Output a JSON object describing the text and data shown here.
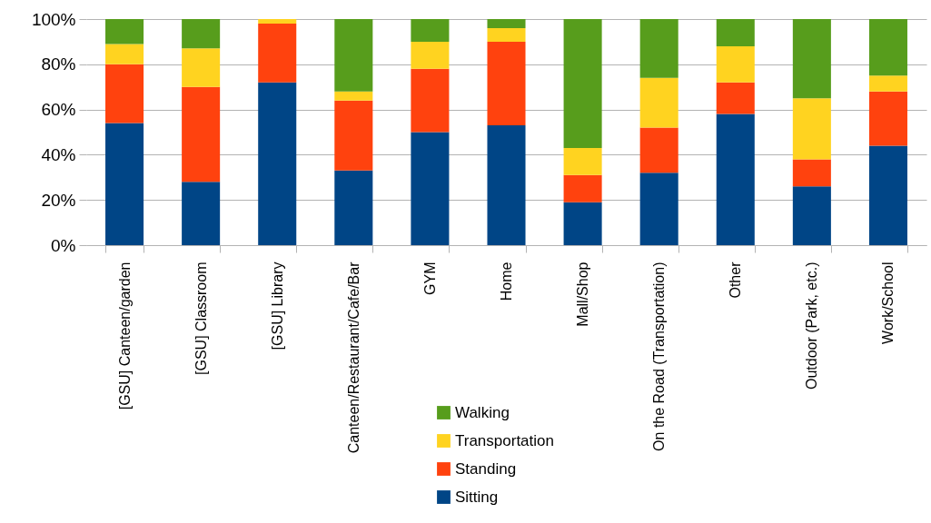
{
  "chart_data": {
    "type": "bar",
    "stacked": true,
    "categories": [
      "[GSU] Canteen/garden",
      "[GSU] Classroom",
      "[GSU] Library",
      "Canteen/Restaurant/Cafe/Bar",
      "GYM",
      "Home",
      "Mall/Shop",
      "On the Road (Transportation)",
      "Other",
      "Outdoor (Park, etc.)",
      "Work/School"
    ],
    "series": [
      {
        "name": "Sitting",
        "color": "#004586",
        "values": [
          54,
          28,
          72,
          33,
          50,
          53,
          19,
          32,
          58,
          26,
          44
        ]
      },
      {
        "name": "Standing",
        "color": "#ff420e",
        "values": [
          26,
          42,
          26,
          31,
          28,
          37,
          12,
          20,
          14,
          12,
          24
        ]
      },
      {
        "name": "Transportation",
        "color": "#ffd320",
        "values": [
          9,
          17,
          2,
          4,
          12,
          6,
          12,
          22,
          16,
          27,
          7
        ]
      },
      {
        "name": "Walking",
        "color": "#579d1c",
        "values": [
          11,
          13,
          0,
          32,
          10,
          4,
          57,
          26,
          12,
          35,
          25
        ]
      }
    ],
    "ylim": [
      0,
      100
    ],
    "yticks": [
      {
        "value": 0,
        "label": "0%"
      },
      {
        "value": 20,
        "label": "20%"
      },
      {
        "value": 40,
        "label": "40%"
      },
      {
        "value": 60,
        "label": "60%"
      },
      {
        "value": 80,
        "label": "80%"
      },
      {
        "value": 100,
        "label": "100%"
      }
    ],
    "grid": "y",
    "legend": "bottom"
  }
}
